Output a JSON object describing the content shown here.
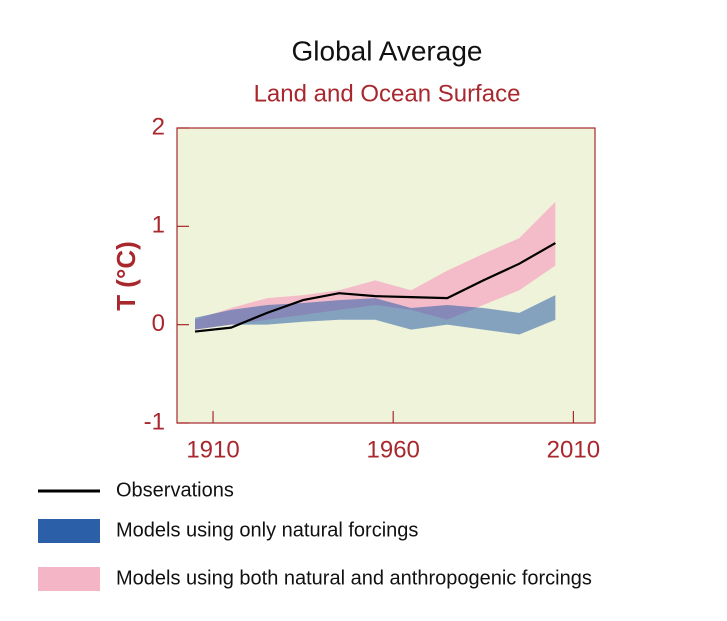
{
  "chart_data": {
    "type": "line",
    "title": "Global Average",
    "subtitle": "Land and Ocean Surface",
    "y_label": "T (°C)",
    "x": [
      1905,
      1915,
      1925,
      1935,
      1945,
      1955,
      1965,
      1975,
      1985,
      1995,
      2005
    ],
    "xlim": [
      1900,
      2016
    ],
    "xticks": [
      1910,
      1960,
      2010
    ],
    "ylim": [
      -1,
      2
    ],
    "yticks": [
      -1,
      0,
      1,
      2
    ],
    "background": "#eff3da",
    "axis_color": "#a8282e",
    "series": [
      {
        "name": "Models using both natural and anthropogenic forcings",
        "color": "#f4b6c6",
        "low": [
          -0.05,
          0.0,
          0.05,
          0.1,
          0.15,
          0.2,
          0.15,
          0.05,
          0.2,
          0.35,
          0.6
        ],
        "high": [
          0.05,
          0.17,
          0.27,
          0.3,
          0.35,
          0.45,
          0.35,
          0.55,
          0.72,
          0.88,
          1.25
        ]
      },
      {
        "name": "Models using only natural forcings",
        "color": "#2b5fa8",
        "low": [
          -0.05,
          0.0,
          0.0,
          0.03,
          0.05,
          0.05,
          -0.05,
          0.0,
          -0.05,
          -0.1,
          0.05
        ],
        "high": [
          0.07,
          0.15,
          0.2,
          0.22,
          0.25,
          0.27,
          0.17,
          0.2,
          0.17,
          0.12,
          0.3
        ]
      },
      {
        "name": "Observations",
        "color": "#000000",
        "values": [
          -0.07,
          -0.03,
          0.12,
          0.25,
          0.32,
          0.29,
          0.28,
          0.27,
          0.45,
          0.62,
          0.83
        ]
      }
    ]
  }
}
